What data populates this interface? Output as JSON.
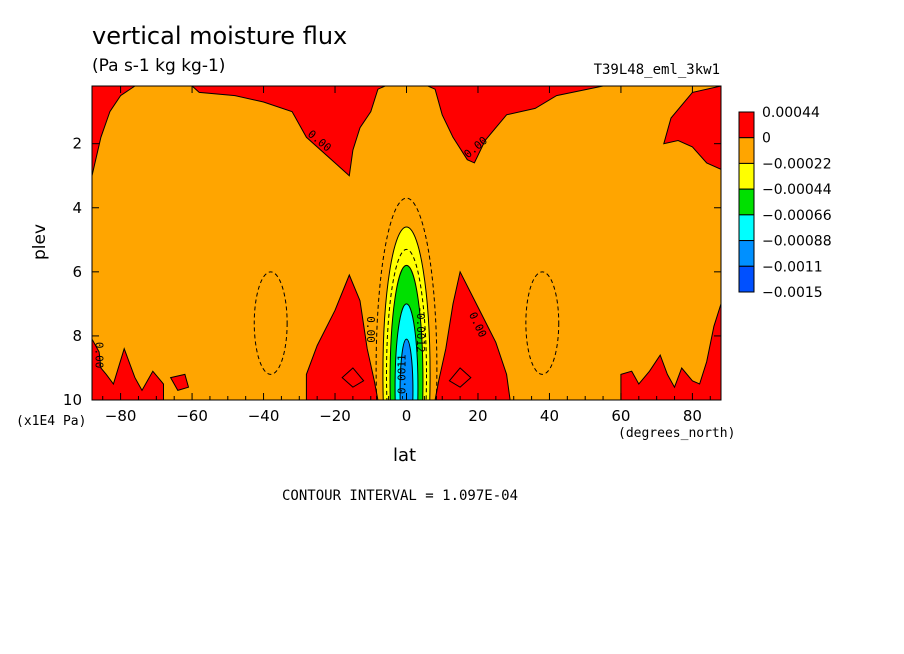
{
  "title": "vertical moisture flux",
  "units": "(Pa s-1 kg kg-1)",
  "dataset": "T39L48_eml_3kw1",
  "contour_interval": "CONTOUR INTERVAL = 1.097E-04",
  "colors": {
    "red": "#ff0000",
    "orange": "#ffa500",
    "yellow": "#ffff00",
    "green": "#00e000",
    "cyan": "#00ffff",
    "blue": "#0090ff",
    "deepblue": "#0050ff"
  },
  "chart_data": {
    "type": "contour",
    "xlabel": "lat",
    "ylabel": "plev",
    "x_units": "(degrees_north)",
    "y_units": "(x1E4 Pa)",
    "xlim": [
      -88,
      88
    ],
    "ylim": [
      10,
      0.2
    ],
    "xticks": [
      -80,
      -60,
      -40,
      -20,
      0,
      20,
      40,
      60,
      80
    ],
    "yticks": [
      2,
      4,
      6,
      8,
      10
    ],
    "colorbar": {
      "levels": [
        0.00044,
        0,
        -0.00022,
        -0.00044,
        -0.00066,
        -0.00088,
        -0.0011,
        -0.0015
      ],
      "labels": [
        "0.00044",
        "0",
        "−0.00022",
        "−0.00044",
        "−0.00066",
        "−0.00088",
        "−0.0011",
        "−0.0015"
      ],
      "colors": [
        "#ff0000",
        "#ffa500",
        "#ffff00",
        "#00e000",
        "#00ffff",
        "#0090ff",
        "#0050ff"
      ]
    },
    "contour_labels": [
      "0.00",
      "0.00",
      "0.00",
      "0.00",
      "0.00",
      "-0.0012",
      "-0.0011"
    ]
  }
}
